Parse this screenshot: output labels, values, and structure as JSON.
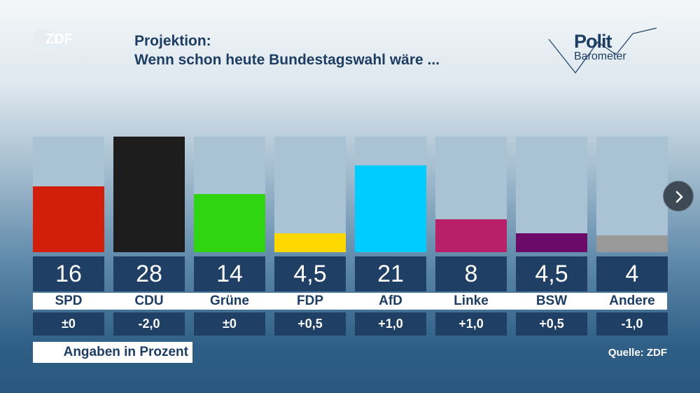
{
  "header": {
    "logo_text": "ZDF",
    "title_line1": "Projektion:",
    "title_line2": "Wenn schon heute Bundestagswahl wäre ...",
    "brand_word1": "Polit",
    "brand_word2": "Barometer"
  },
  "chart_data": {
    "type": "bar",
    "title": "Projektion: Wenn schon heute Bundestagswahl wäre ...",
    "categories": [
      "SPD",
      "CDU",
      "Grüne",
      "FDP",
      "AfD",
      "Linke",
      "BSW",
      "Andere"
    ],
    "values": [
      16,
      28,
      14,
      4.5,
      21,
      8,
      4.5,
      4
    ],
    "value_labels": [
      "16",
      "28",
      "14",
      "4,5",
      "21",
      "8",
      "4,5",
      "4"
    ],
    "changes": [
      "±0",
      "-2,0",
      "±0",
      "+0,5",
      "+1,0",
      "+1,0",
      "+0,5",
      "-1,0"
    ],
    "colors": [
      "#d21f0c",
      "#1d1d1d",
      "#2fd510",
      "#ffd800",
      "#00ccff",
      "#b8206a",
      "#6b0a68",
      "#999999"
    ],
    "ylim": [
      0,
      28
    ],
    "grid": false,
    "unit_note": "Angaben in Prozent",
    "source": "Quelle: ZDF"
  },
  "icons": {
    "next": "chevron-right-icon",
    "logo": "zdf-logo-icon"
  }
}
